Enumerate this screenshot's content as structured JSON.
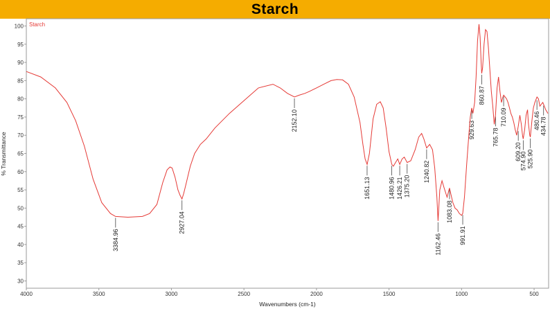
{
  "title": "Starch",
  "chart_data": {
    "type": "line",
    "title": "Starch",
    "xlabel": "Wavenumbers (cm-1)",
    "ylabel": "% Transmittance",
    "xlim": [
      4000,
      400
    ],
    "ylim": [
      28,
      102
    ],
    "x_reversed": true,
    "grid": false,
    "legend_position": "top-left",
    "line_color": "#e53935",
    "x_ticks": [
      4000,
      3500,
      3000,
      2500,
      2000,
      1500,
      1000,
      500
    ],
    "y_ticks": [
      30,
      35,
      40,
      45,
      50,
      55,
      60,
      65,
      70,
      75,
      80,
      85,
      90,
      95,
      100
    ],
    "series": [
      {
        "name": "Starch",
        "x": [
          4000,
          3900,
          3800,
          3720,
          3660,
          3600,
          3540,
          3480,
          3420,
          3385,
          3300,
          3200,
          3150,
          3100,
          3060,
          3030,
          3010,
          2995,
          2975,
          2955,
          2940,
          2927,
          2915,
          2900,
          2870,
          2840,
          2800,
          2760,
          2700,
          2600,
          2500,
          2400,
          2300,
          2250,
          2200,
          2152,
          2120,
          2080,
          2050,
          2000,
          1950,
          1900,
          1860,
          1820,
          1780,
          1740,
          1700,
          1680,
          1665,
          1651,
          1635,
          1610,
          1585,
          1560,
          1540,
          1520,
          1500,
          1481,
          1470,
          1455,
          1440,
          1426,
          1410,
          1395,
          1375,
          1350,
          1320,
          1295,
          1275,
          1260,
          1241,
          1220,
          1200,
          1185,
          1170,
          1162,
          1150,
          1135,
          1120,
          1100,
          1083,
          1072,
          1060,
          1045,
          1030,
          1015,
          1000,
          992,
          980,
          965,
          950,
          940,
          930,
          922,
          910,
          900,
          890,
          880,
          872,
          865,
          861,
          855,
          845,
          835,
          825,
          815,
          805,
          795,
          785,
          775,
          766,
          755,
          745,
          735,
          725,
          715,
          710,
          700,
          690,
          680,
          670,
          660,
          650,
          640,
          630,
          620,
          609,
          598,
          588,
          580,
          575,
          565,
          555,
          545,
          540,
          530,
          526,
          515,
          505,
          495,
          485,
          480,
          470,
          460,
          450,
          440,
          435,
          420,
          405
        ],
        "y": [
          87.5,
          86.0,
          83.0,
          79.0,
          74.0,
          67.0,
          58.0,
          51.5,
          48.5,
          47.7,
          47.5,
          47.7,
          48.5,
          51.0,
          57.0,
          60.5,
          61.3,
          61.0,
          58.5,
          55.0,
          53.5,
          52.5,
          54.0,
          56.5,
          61.5,
          65.0,
          67.5,
          69.0,
          72.0,
          76.0,
          79.5,
          83.0,
          84.0,
          83.0,
          81.5,
          80.5,
          81.0,
          81.5,
          82.0,
          83.0,
          84.0,
          85.0,
          85.3,
          85.2,
          84.0,
          80.5,
          73.5,
          67.5,
          63.5,
          62.0,
          65.0,
          74.5,
          78.5,
          79.2,
          77.5,
          72.0,
          65.5,
          62.0,
          61.5,
          62.5,
          63.5,
          62.0,
          63.5,
          64.0,
          62.5,
          63.0,
          66.0,
          69.5,
          70.5,
          69.0,
          66.5,
          67.5,
          66.0,
          61.0,
          53.0,
          46.5,
          55.0,
          57.5,
          55.5,
          53.0,
          55.5,
          53.5,
          51.5,
          50.0,
          49.5,
          48.5,
          48.0,
          48.5,
          53.0,
          62.0,
          70.0,
          75.0,
          77.5,
          76.0,
          79.0,
          86.0,
          96.0,
          100.5,
          97.0,
          90.0,
          87.0,
          88.5,
          95.0,
          99.0,
          98.5,
          94.0,
          88.0,
          82.0,
          78.0,
          73.0,
          75.5,
          83.0,
          86.0,
          82.0,
          79.0,
          80.5,
          81.0,
          80.5,
          80.0,
          79.0,
          77.5,
          76.0,
          75.0,
          73.5,
          71.5,
          70.0,
          72.5,
          75.5,
          73.0,
          70.0,
          69.0,
          71.5,
          75.5,
          77.0,
          73.5,
          70.0,
          69.5,
          74.0,
          77.5,
          79.0,
          80.0,
          80.5,
          80.0,
          78.0,
          78.5,
          79.0,
          78.5,
          77.0,
          76.0
        ]
      }
    ],
    "annotations": [
      {
        "x": 3384.96,
        "y": 47.7,
        "label": "3384.96"
      },
      {
        "x": 2927.04,
        "y": 52.5,
        "label": "2927.04"
      },
      {
        "x": 2152.1,
        "y": 80.5,
        "label": "2152.10"
      },
      {
        "x": 1651.13,
        "y": 62.0,
        "label": "1651.13"
      },
      {
        "x": 1480.96,
        "y": 62.0,
        "label": "1480.96"
      },
      {
        "x": 1426.21,
        "y": 62.0,
        "label": "1426.21"
      },
      {
        "x": 1375.2,
        "y": 62.5,
        "label": "1375.20"
      },
      {
        "x": 1240.82,
        "y": 66.5,
        "label": "1240.82"
      },
      {
        "x": 1162.46,
        "y": 46.5,
        "label": "1162.46"
      },
      {
        "x": 1083.08,
        "y": 55.5,
        "label": "1083.08"
      },
      {
        "x": 991.91,
        "y": 48.5,
        "label": "991.91"
      },
      {
        "x": 929.63,
        "y": 77.5,
        "label": "929.63"
      },
      {
        "x": 860.87,
        "y": 87.0,
        "label": "860.87"
      },
      {
        "x": 765.78,
        "y": 75.5,
        "label": "765.78"
      },
      {
        "x": 710.09,
        "y": 81.0,
        "label": "710.09"
      },
      {
        "x": 609.2,
        "y": 71.5,
        "label": "609.20"
      },
      {
        "x": 574.9,
        "y": 69.0,
        "label": "574.90"
      },
      {
        "x": 525.9,
        "y": 69.5,
        "label": "525.90"
      },
      {
        "x": 480.46,
        "y": 80.0,
        "label": "480.46"
      },
      {
        "x": 434.78,
        "y": 78.5,
        "label": "434.78"
      }
    ]
  }
}
